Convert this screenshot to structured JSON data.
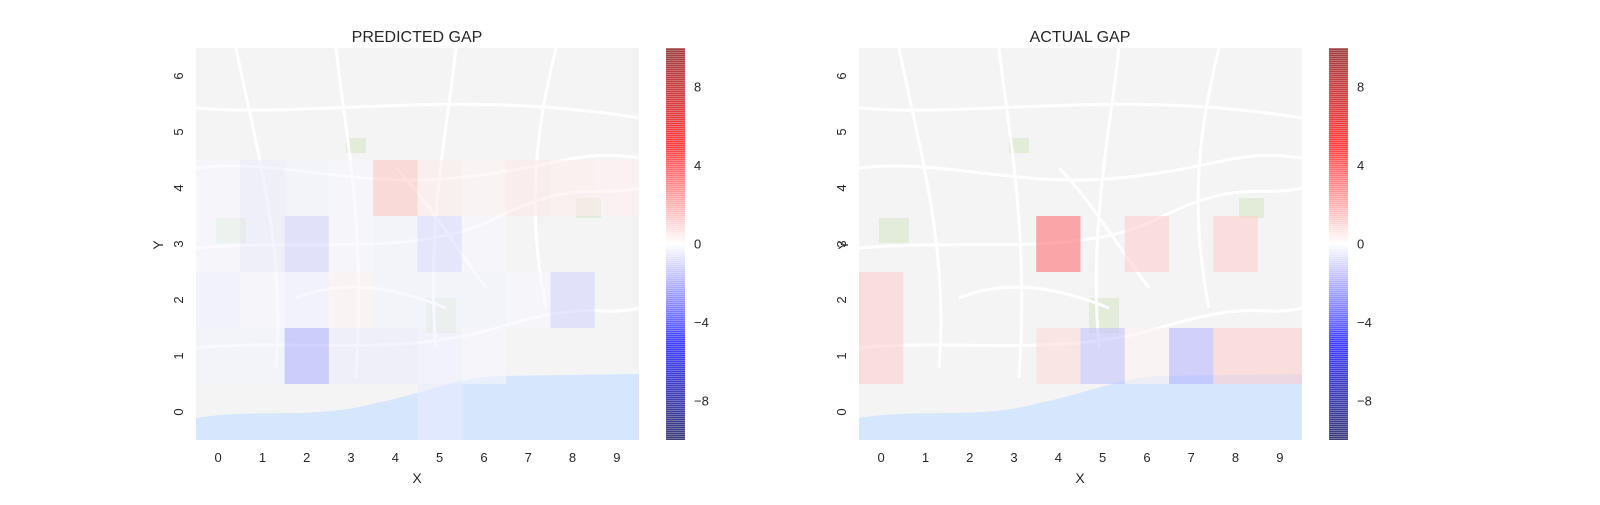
{
  "figure": {
    "colorbar": {
      "ticks": [
        8,
        4,
        0,
        -4,
        -8
      ],
      "tick_labels": [
        "8",
        "4",
        "0",
        "−4",
        "−8"
      ],
      "range": [
        -10,
        10
      ],
      "colors": {
        "low": "#0000ff",
        "mid": "#ffffff",
        "high": "#ff0000"
      }
    },
    "background_colors": {
      "land": "#f4f4f4",
      "road": "#ffffff",
      "water": "#d6e6fc",
      "park": "#e3ecd9"
    }
  },
  "chart_data": [
    {
      "type": "heatmap",
      "title": "PREDICTED GAP",
      "xlabel": "X",
      "ylabel": "Y",
      "x_ticks": [
        "0",
        "1",
        "2",
        "3",
        "4",
        "5",
        "6",
        "7",
        "8",
        "9"
      ],
      "y_ticks": [
        "0",
        "1",
        "2",
        "3",
        "4",
        "5",
        "6"
      ],
      "xlim": [
        -0.5,
        9.5
      ],
      "ylim": [
        -0.5,
        6.5
      ],
      "grid": false,
      "colormap": "seismic",
      "cells": [
        {
          "x": 0,
          "y": 1,
          "value": -0.5
        },
        {
          "x": 0,
          "y": 2,
          "value": -0.6
        },
        {
          "x": 0,
          "y": 3,
          "value": -0.3
        },
        {
          "x": 0,
          "y": 4,
          "value": -0.3
        },
        {
          "x": 1,
          "y": 1,
          "value": -0.5
        },
        {
          "x": 1,
          "y": 2,
          "value": -0.4
        },
        {
          "x": 1,
          "y": 3,
          "value": -0.8
        },
        {
          "x": 1,
          "y": 4,
          "value": -0.8
        },
        {
          "x": 2,
          "y": 1,
          "value": -3.2
        },
        {
          "x": 2,
          "y": 2,
          "value": -0.6
        },
        {
          "x": 2,
          "y": 3,
          "value": -1.8
        },
        {
          "x": 2,
          "y": 4,
          "value": -0.5
        },
        {
          "x": 3,
          "y": 1,
          "value": -0.8
        },
        {
          "x": 3,
          "y": 2,
          "value": 0.5
        },
        {
          "x": 3,
          "y": 3,
          "value": -0.4
        },
        {
          "x": 3,
          "y": 4,
          "value": -0.3
        },
        {
          "x": 4,
          "y": 1,
          "value": -0.8
        },
        {
          "x": 4,
          "y": 2,
          "value": -0.5
        },
        {
          "x": 4,
          "y": 3,
          "value": -0.5
        },
        {
          "x": 4,
          "y": 4,
          "value": 2.4
        },
        {
          "x": 5,
          "y": 0,
          "value": -0.8
        },
        {
          "x": 5,
          "y": 1,
          "value": -0.6
        },
        {
          "x": 5,
          "y": 2,
          "value": -0.5
        },
        {
          "x": 5,
          "y": 3,
          "value": -1.4
        },
        {
          "x": 5,
          "y": 4,
          "value": 0.8
        },
        {
          "x": 6,
          "y": 1,
          "value": -0.3
        },
        {
          "x": 6,
          "y": 2,
          "value": -0.5
        },
        {
          "x": 6,
          "y": 3,
          "value": -0.3
        },
        {
          "x": 6,
          "y": 4,
          "value": 0.5
        },
        {
          "x": 7,
          "y": 2,
          "value": -0.3
        },
        {
          "x": 7,
          "y": 4,
          "value": 0.9
        },
        {
          "x": 8,
          "y": 2,
          "value": -1.8
        },
        {
          "x": 8,
          "y": 4,
          "value": 0.7
        },
        {
          "x": 9,
          "y": 4,
          "value": 0.6
        }
      ]
    },
    {
      "type": "heatmap",
      "title": "ACTUAL GAP",
      "xlabel": "X",
      "ylabel": "Y",
      "x_ticks": [
        "0",
        "1",
        "2",
        "3",
        "4",
        "5",
        "6",
        "7",
        "8",
        "9"
      ],
      "y_ticks": [
        "0",
        "1",
        "2",
        "3",
        "4",
        "5",
        "6"
      ],
      "xlim": [
        -0.5,
        9.5
      ],
      "ylim": [
        -0.5,
        6.5
      ],
      "grid": false,
      "colormap": "seismic",
      "cells": [
        {
          "x": 0,
          "y": 1,
          "value": 2.0
        },
        {
          "x": 0,
          "y": 2,
          "value": 2.0
        },
        {
          "x": 4,
          "y": 1,
          "value": 1.5
        },
        {
          "x": 4,
          "y": 3,
          "value": 6.0
        },
        {
          "x": 5,
          "y": 1,
          "value": -2.5
        },
        {
          "x": 6,
          "y": 1,
          "value": 0.5
        },
        {
          "x": 6,
          "y": 3,
          "value": 2.0
        },
        {
          "x": 7,
          "y": 1,
          "value": -3.0
        },
        {
          "x": 8,
          "y": 1,
          "value": 2.0
        },
        {
          "x": 8,
          "y": 3,
          "value": 2.0
        },
        {
          "x": 9,
          "y": 1,
          "value": 2.0
        }
      ]
    }
  ]
}
